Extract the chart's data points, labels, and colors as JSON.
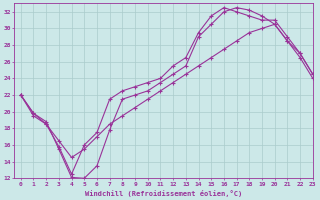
{
  "xlabel": "Windchill (Refroidissement éolien,°C)",
  "xlim": [
    -0.5,
    23
  ],
  "ylim": [
    12,
    33
  ],
  "xticks": [
    0,
    1,
    2,
    3,
    4,
    5,
    6,
    7,
    8,
    9,
    10,
    11,
    12,
    13,
    14,
    15,
    16,
    17,
    18,
    19,
    20,
    21,
    22,
    23
  ],
  "yticks": [
    12,
    14,
    16,
    18,
    20,
    22,
    24,
    26,
    28,
    30,
    32
  ],
  "bg_color": "#cce8e8",
  "line_color": "#993399",
  "grid_color": "#aacccc",
  "line1_x": [
    0,
    1,
    2,
    3,
    4,
    5,
    6,
    7,
    8,
    9,
    10,
    11,
    12,
    13,
    14,
    15,
    16,
    17,
    18,
    19,
    20,
    21,
    22,
    23
  ],
  "line1_y": [
    22.0,
    19.8,
    18.8,
    15.5,
    12.1,
    12.0,
    13.5,
    17.8,
    21.5,
    22.0,
    22.5,
    23.5,
    24.5,
    25.5,
    29.0,
    30.5,
    32.0,
    32.5,
    32.2,
    31.5,
    30.5,
    28.5,
    26.5,
    24.0
  ],
  "line2_x": [
    0,
    1,
    2,
    3,
    4,
    5,
    6,
    7,
    8,
    9,
    10,
    11,
    12,
    13,
    14,
    15,
    16,
    17,
    18,
    19,
    20,
    21,
    22,
    23
  ],
  "line2_y": [
    22.0,
    19.8,
    18.5,
    15.8,
    12.5,
    16.0,
    17.5,
    21.5,
    22.5,
    23.0,
    23.5,
    24.0,
    25.5,
    26.5,
    29.5,
    31.5,
    32.5,
    32.0,
    31.5,
    31.0,
    31.0,
    29.0,
    27.0,
    24.5
  ],
  "line3_x": [
    0,
    1,
    2,
    3,
    4,
    5,
    6,
    7,
    8,
    9,
    10,
    11,
    12,
    13,
    14,
    15,
    16,
    17,
    18,
    19,
    20,
    21,
    22,
    23
  ],
  "line3_y": [
    22.0,
    19.5,
    18.5,
    16.5,
    14.5,
    15.5,
    17.0,
    18.5,
    19.5,
    20.5,
    21.5,
    22.5,
    23.5,
    24.5,
    25.5,
    26.5,
    27.5,
    28.5,
    29.5,
    30.0,
    30.5,
    28.5,
    27.0,
    24.5
  ]
}
